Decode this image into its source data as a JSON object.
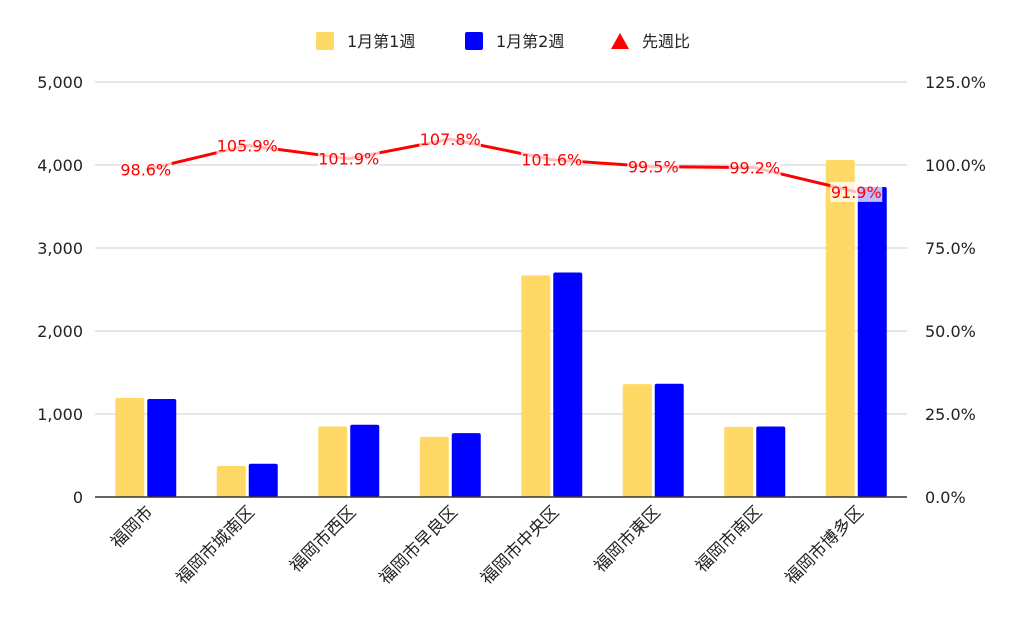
{
  "chart_data": {
    "type": "bar",
    "categories": [
      "福岡市",
      "福岡市城南区",
      "福岡市西区",
      "福岡市早良区",
      "福岡市中央区",
      "福岡市東区",
      "福岡市南区",
      "福岡市博多区"
    ],
    "series": [
      {
        "name": "1月第1週",
        "kind": "bar",
        "axis": "left",
        "color": "#ffd966",
        "values": [
          1195,
          375,
          850,
          725,
          2670,
          1360,
          845,
          4060
        ]
      },
      {
        "name": "1月第2週",
        "kind": "bar",
        "axis": "left",
        "color": "#0000ff",
        "values": [
          1180,
          400,
          870,
          770,
          2705,
          1365,
          850,
          3735
        ]
      },
      {
        "name": "先週比",
        "kind": "line",
        "axis": "right",
        "color": "#ff0000",
        "values": [
          98.6,
          105.9,
          101.9,
          107.8,
          101.6,
          99.5,
          99.2,
          91.9
        ]
      }
    ],
    "data_labels": [
      "98.6%",
      "105.9%",
      "101.9%",
      "107.8%",
      "101.6%",
      "99.5%",
      "99.2%",
      "91.9%"
    ],
    "left_axis": {
      "min": 0,
      "max": 5000,
      "ticks": [
        0,
        1000,
        2000,
        3000,
        4000,
        5000
      ],
      "tick_labels": [
        "0",
        "1,000",
        "2,000",
        "3,000",
        "4,000",
        "5,000"
      ]
    },
    "right_axis": {
      "min": 0,
      "max": 125,
      "ticks": [
        0,
        25,
        50,
        75,
        100,
        125
      ],
      "tick_labels": [
        "0.0%",
        "25.0%",
        "50.0%",
        "75.0%",
        "100.0%",
        "125.0%"
      ]
    },
    "legend": {
      "position": "top",
      "entries": [
        {
          "label": "1月第1週",
          "marker": "square",
          "color": "#ffd966"
        },
        {
          "label": "1月第2週",
          "marker": "square",
          "color": "#0000ff"
        },
        {
          "label": "先週比",
          "marker": "triangle",
          "color": "#ff0000"
        }
      ]
    },
    "grid": true
  }
}
